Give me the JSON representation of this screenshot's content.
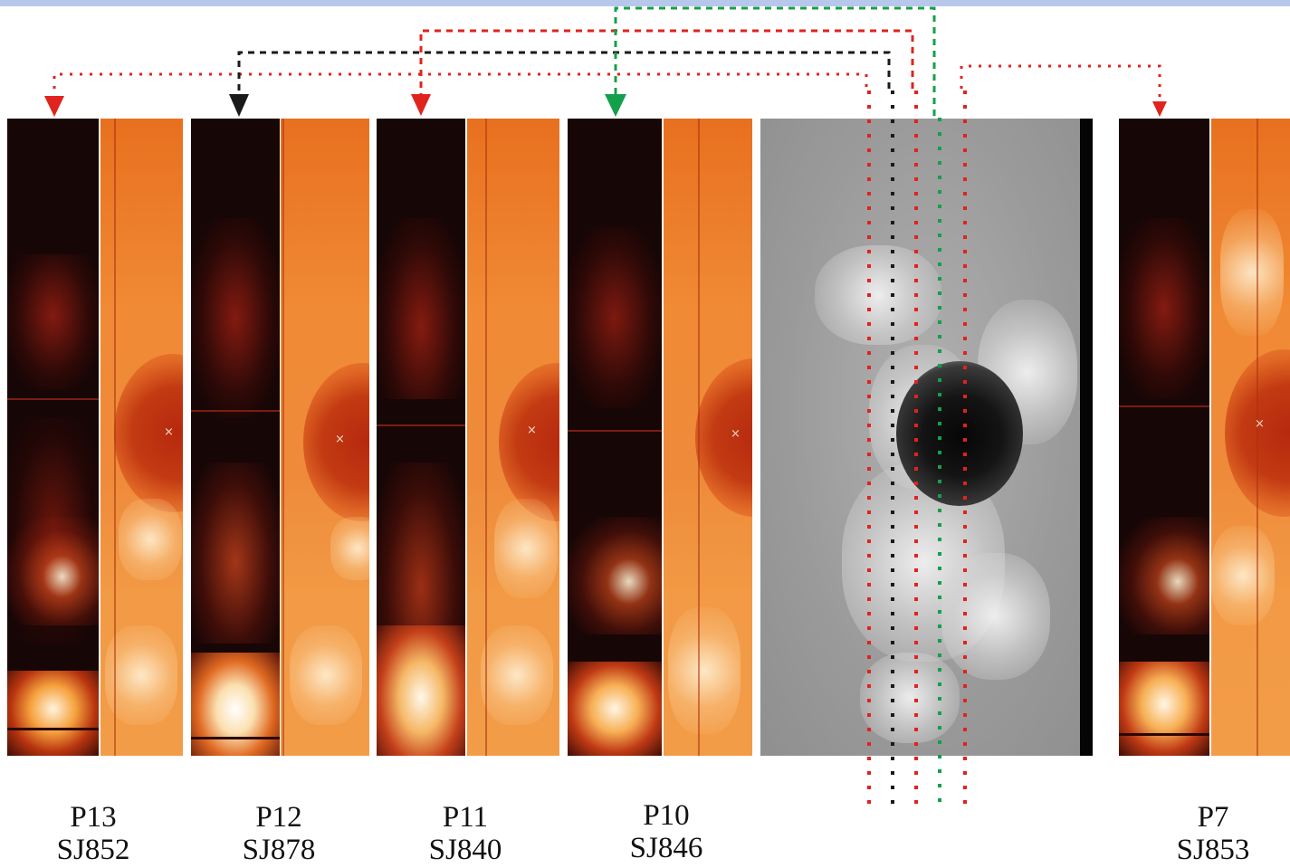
{
  "panels": [
    {
      "position_label": "P13",
      "slitjaw_label": "SJ852"
    },
    {
      "position_label": "P12",
      "slitjaw_label": "SJ878"
    },
    {
      "position_label": "P11",
      "slitjaw_label": "SJ840"
    },
    {
      "position_label": "P10",
      "slitjaw_label": "SJ846"
    },
    {
      "position_label": "P7",
      "slitjaw_label": "SJ853"
    }
  ],
  "colors": {
    "top_bar": "#b7c8ea",
    "connector_red": "#e0231d",
    "connector_black": "#1a1a1a",
    "connector_green": "#14a04a"
  },
  "icons": {
    "arrowhead": "down-triangle",
    "slit_marker": "small-cross"
  }
}
